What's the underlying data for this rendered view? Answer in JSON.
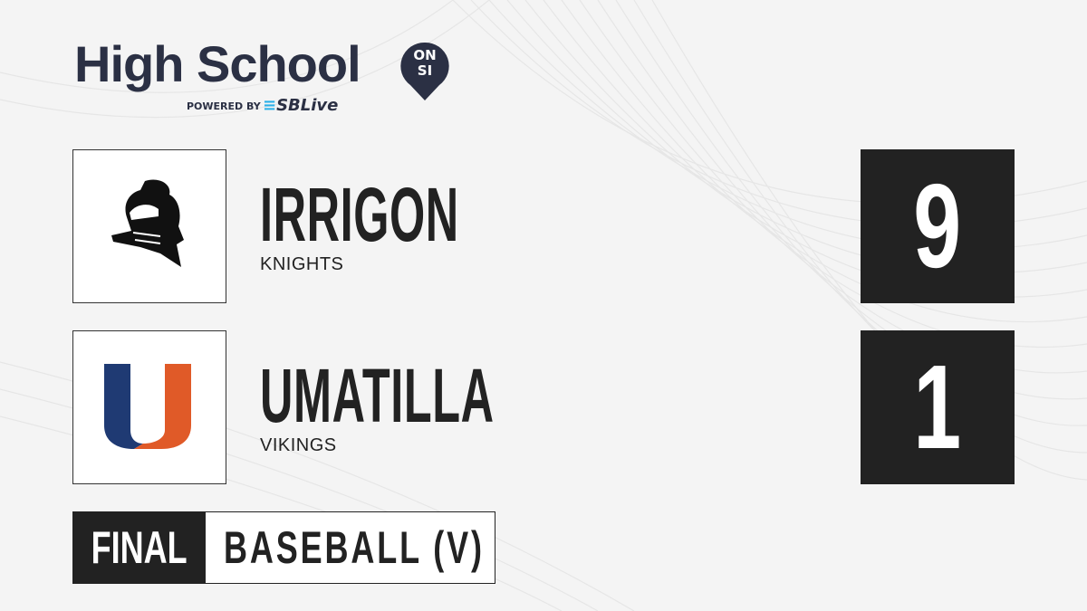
{
  "brand": {
    "title": "High School",
    "badge": "ON SI",
    "powered_by": "POWERED BY",
    "partner": "SBLive",
    "color": "#2b3044",
    "partner_accent": "#2ab0e8"
  },
  "teams": [
    {
      "name": "IRRIGON",
      "mascot": "KNIGHTS",
      "score": "9",
      "logo_icon": "knight-helmet-icon"
    },
    {
      "name": "UMATILLA",
      "mascot": "VIKINGS",
      "score": "1",
      "logo_icon": "letter-u-icon",
      "logo_colors": [
        "#1f3a73",
        "#e05a28"
      ]
    }
  ],
  "status": {
    "label": "FINAL",
    "sport": "BASEBALL (V)"
  }
}
